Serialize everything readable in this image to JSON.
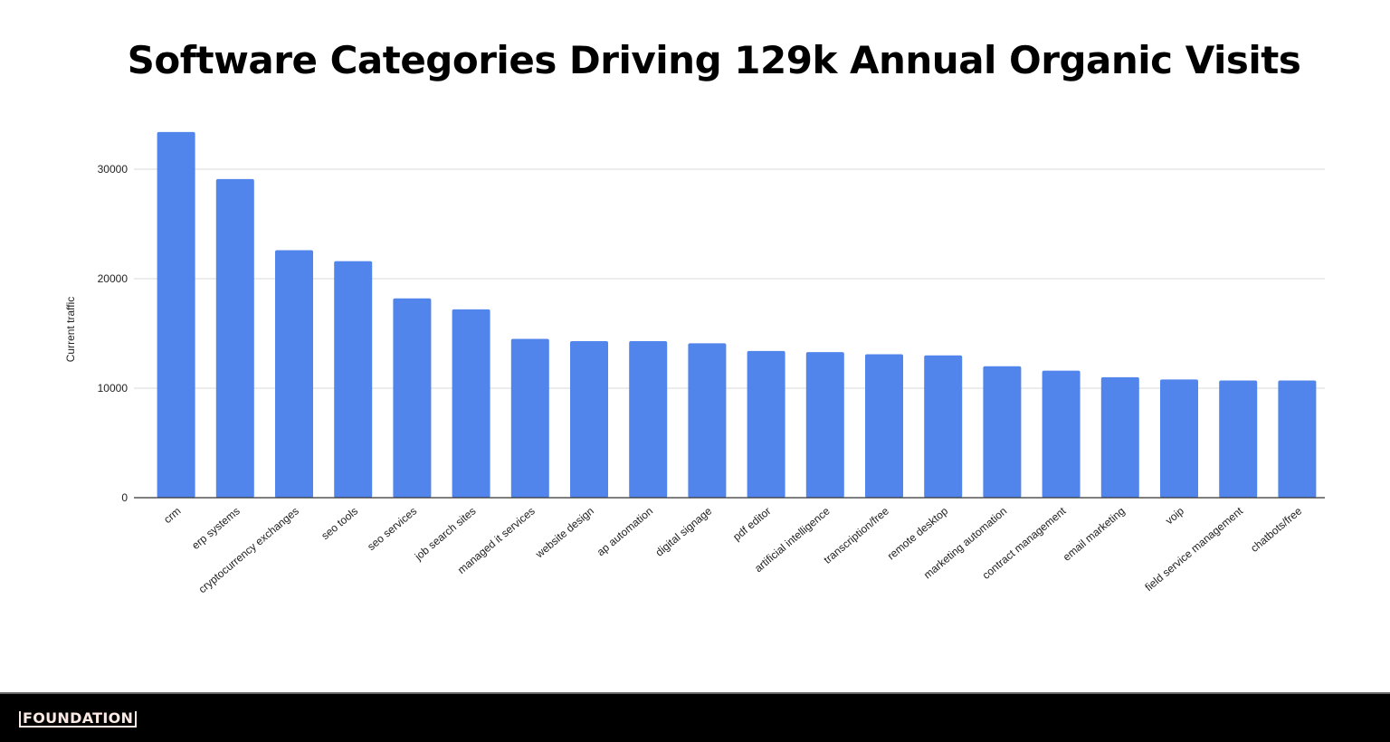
{
  "chart_data": {
    "type": "bar",
    "title": "Software Categories Driving 129k Annual Organic Visits",
    "xlabel": "",
    "ylabel": "Current traffic",
    "ylim": [
      0,
      33500
    ],
    "yticks": [
      0,
      10000,
      20000,
      30000
    ],
    "grid": true,
    "legend": "none",
    "bar_color": "#5285ec",
    "categories": [
      "crm",
      "erp systems",
      "cryptocurrency exchanges",
      "seo tools",
      "seo services",
      "job search sites",
      "managed it services",
      "website design",
      "ap automation",
      "digital signage",
      "pdf editor",
      "artificial intelligence",
      "transcription/free",
      "remote desktop",
      "marketing automation",
      "contract management",
      "email marketing",
      "voip",
      "field service management",
      "chatbots/free"
    ],
    "values": [
      33400,
      29100,
      22600,
      21600,
      18200,
      17200,
      14500,
      14300,
      14300,
      14100,
      13400,
      13300,
      13100,
      13000,
      12000,
      11600,
      11000,
      10800,
      10700,
      10700
    ]
  },
  "footer": {
    "logo": "FOUNDATION"
  }
}
